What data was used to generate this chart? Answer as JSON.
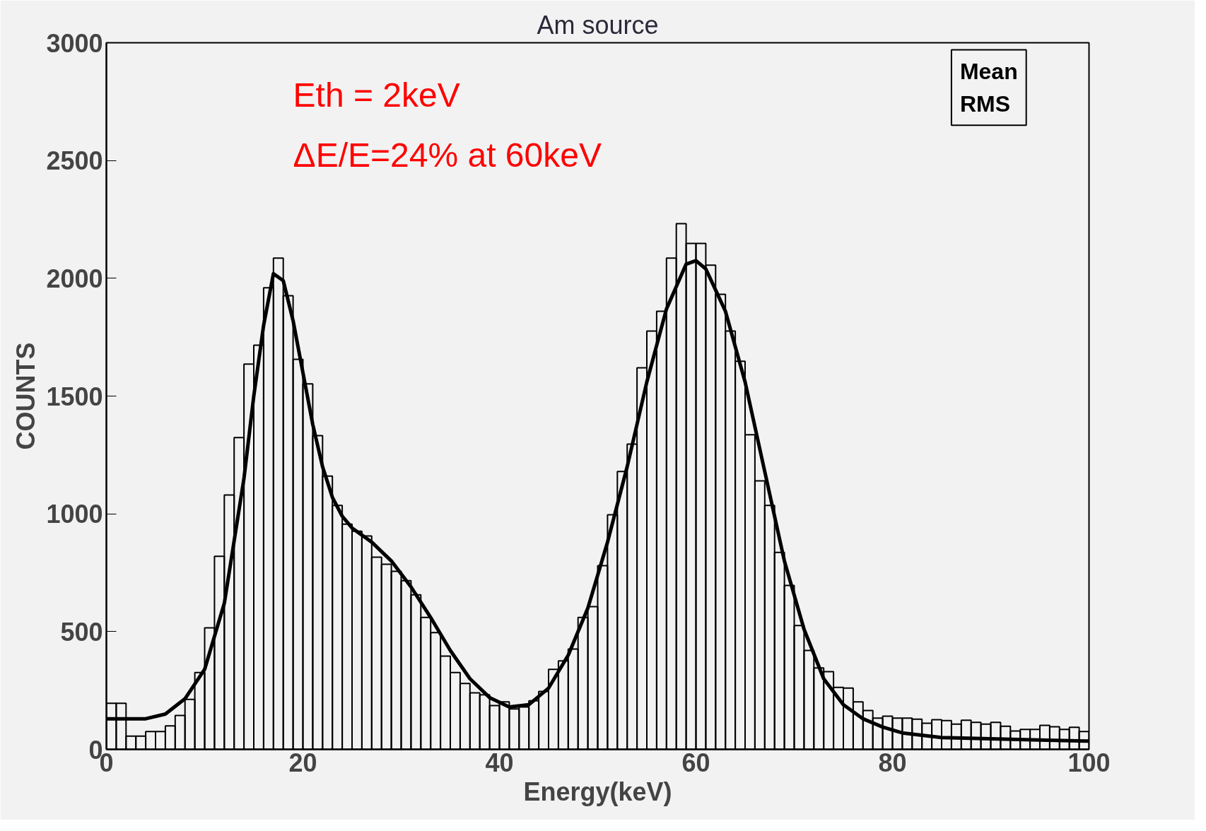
{
  "chart_data": {
    "type": "histogram",
    "title": "Am source",
    "xlabel": "Energy(keV)",
    "ylabel": "COUNTS",
    "annotations": [
      "Eth = 2keV",
      "ΔE/E=24% at 60keV",
      "Mean",
      "RMS"
    ],
    "bins": [
      0,
      1,
      2,
      3,
      4,
      5,
      6,
      7,
      8,
      9,
      10,
      11,
      12,
      13,
      14,
      15,
      16,
      17,
      18,
      19,
      20,
      21,
      22,
      23,
      24,
      25,
      26,
      27,
      28,
      29,
      30,
      31,
      32,
      33,
      34,
      35,
      36,
      37,
      38,
      39,
      40,
      41,
      42,
      43,
      44,
      45,
      46,
      47,
      48,
      49,
      50,
      51,
      52,
      53,
      54,
      55,
      56,
      57,
      58,
      59,
      60,
      61,
      62,
      63,
      64,
      65,
      66,
      67,
      68,
      69,
      70,
      71,
      72,
      73,
      74,
      75,
      76,
      77,
      78,
      79,
      80,
      81,
      82,
      83,
      84,
      85,
      86,
      87,
      88,
      89,
      90,
      91,
      92,
      93,
      94,
      95,
      96,
      97,
      98,
      99,
      100
    ],
    "values": [
      196,
      196,
      56,
      56,
      76,
      76,
      100,
      144,
      212,
      326,
      516,
      820,
      1080,
      1324,
      1636,
      1716,
      1960,
      2086,
      1926,
      1656,
      1552,
      1332,
      1160,
      1036,
      956,
      926,
      906,
      816,
      786,
      756,
      716,
      656,
      560,
      496,
      396,
      326,
      280,
      240,
      232,
      186,
      202,
      172,
      180,
      206,
      246,
      340,
      376,
      426,
      560,
      606,
      780,
      996,
      1180,
      1296,
      1620,
      1776,
      1860,
      2086,
      2232,
      2148,
      2148,
      2056,
      1932,
      1776,
      1648,
      1336,
      1140,
      1036,
      836,
      696,
      526,
      420,
      346,
      330,
      263,
      260,
      202,
      165,
      133,
      141,
      133,
      133,
      128,
      111,
      126,
      122,
      107,
      124,
      115,
      107,
      115,
      98,
      78,
      85,
      85,
      102,
      96,
      85,
      94,
      76
    ],
    "color": "#000000",
    "series": [
      {
        "type": "line",
        "color": "#000000",
        "x": [
          0,
          4,
          6,
          8,
          10,
          12,
          14,
          15,
          16,
          17,
          18,
          19,
          20,
          21,
          22,
          23,
          24,
          25,
          27,
          29,
          31,
          33,
          35,
          37,
          39,
          41,
          43,
          45,
          47,
          49,
          51,
          53,
          55,
          57,
          59,
          60,
          61,
          63,
          65,
          67,
          69,
          71,
          73,
          75,
          77,
          79,
          81,
          85,
          90,
          95,
          100
        ],
        "values": [
          130,
          130,
          150,
          215,
          340,
          620,
          1150,
          1500,
          1800,
          2020,
          1990,
          1820,
          1600,
          1380,
          1200,
          1070,
          990,
          940,
          880,
          800,
          690,
          560,
          420,
          300,
          220,
          180,
          190,
          260,
          400,
          600,
          880,
          1200,
          1560,
          1870,
          2060,
          2075,
          2040,
          1860,
          1560,
          1180,
          800,
          510,
          300,
          190,
          130,
          95,
          70,
          50,
          45,
          40,
          35
        ]
      }
    ],
    "xlim": [
      0,
      100
    ],
    "ylim": [
      0,
      3000
    ],
    "xticks": [
      0,
      20,
      40,
      60,
      80,
      100
    ],
    "yticks": [
      0,
      500,
      1000,
      1500,
      2000,
      2500,
      3000
    ],
    "grid": false
  }
}
